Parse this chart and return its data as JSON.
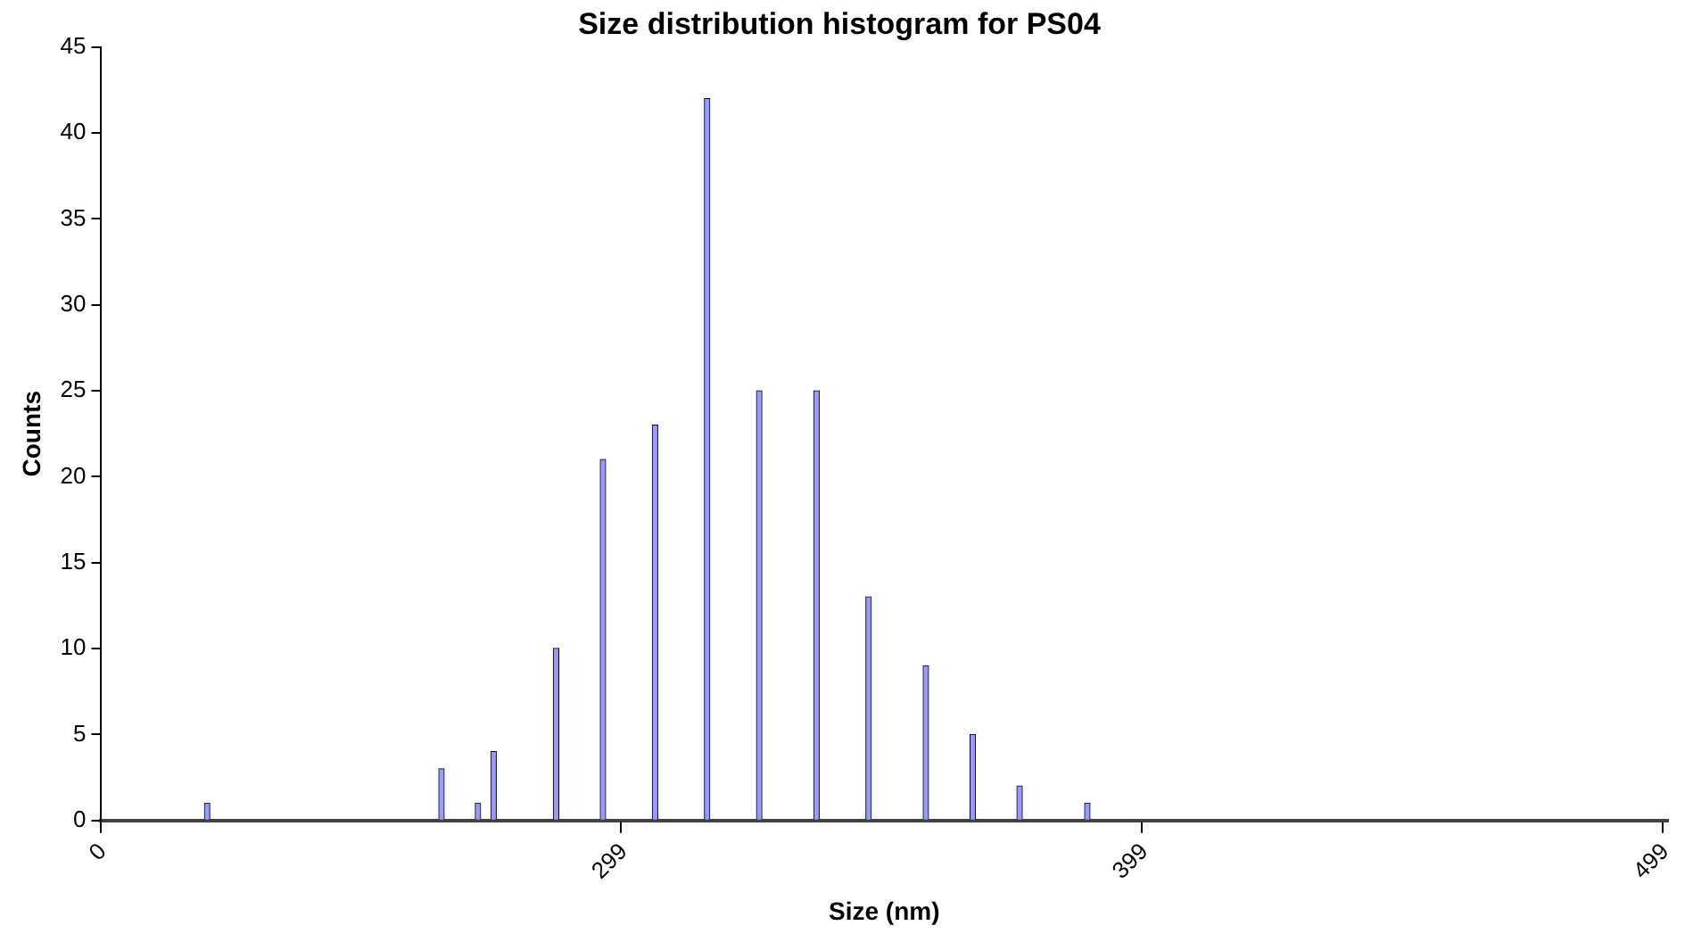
{
  "chart_data": {
    "type": "bar",
    "title": "Size distribution histogram for PS04",
    "xlabel": "Size (nm)",
    "ylabel": "Counts",
    "categories": [
      "0",
      null,
      null,
      null,
      null,
      null,
      null,
      null,
      null,
      null,
      null,
      null,
      null,
      null,
      null,
      null,
      null,
      null,
      null,
      null,
      null,
      null,
      null,
      null,
      null,
      null,
      null,
      null,
      null,
      null,
      null,
      null,
      null,
      null,
      null,
      null,
      null,
      null,
      null,
      null,
      null,
      null,
      null,
      null,
      null,
      null,
      null,
      null,
      null,
      null,
      null,
      null,
      null,
      null,
      null,
      null,
      null,
      null,
      null,
      null,
      null,
      null,
      null,
      null,
      null,
      null,
      null,
      null,
      null,
      null,
      null,
      null,
      null,
      null,
      null,
      null,
      null,
      null,
      null,
      null,
      null,
      null,
      null,
      null,
      null,
      null,
      null,
      null,
      null,
      null,
      null,
      null,
      null,
      null,
      null,
      null,
      null,
      null,
      null,
      null,
      "299",
      null,
      null,
      null,
      null,
      null,
      null,
      null,
      null,
      null,
      null,
      null,
      null,
      null,
      null,
      null,
      null,
      null,
      null,
      null,
      null,
      null,
      null,
      null,
      null,
      null,
      null,
      null,
      null,
      null,
      null,
      null,
      null,
      null,
      null,
      null,
      null,
      null,
      null,
      null,
      null,
      null,
      null,
      null,
      null,
      null,
      null,
      null,
      null,
      null,
      null,
      null,
      null,
      null,
      null,
      null,
      null,
      null,
      null,
      null,
      null,
      null,
      null,
      null,
      null,
      null,
      null,
      null,
      null,
      null,
      null,
      null,
      null,
      null,
      null,
      null,
      null,
      null,
      null,
      null,
      null,
      null,
      null,
      null,
      null,
      null,
      null,
      null,
      null,
      null,
      null,
      null,
      null,
      null,
      null,
      null,
      null,
      null,
      null,
      null,
      "399",
      null,
      null,
      null,
      null,
      null,
      null,
      null,
      null,
      null,
      null,
      null,
      null,
      null,
      null,
      null,
      null,
      null,
      null,
      null,
      null,
      null,
      null,
      null,
      null,
      null,
      null,
      null,
      null,
      null,
      null,
      null,
      null,
      null,
      null,
      null,
      null,
      null,
      null,
      null,
      null,
      null,
      null,
      null,
      null,
      null,
      null,
      null,
      null,
      null,
      null,
      null,
      null,
      null,
      null,
      null,
      null,
      null,
      null,
      null,
      null,
      null,
      null,
      null,
      null,
      null,
      null,
      null,
      null,
      null,
      null,
      null,
      null,
      null,
      null,
      null,
      null,
      null,
      null,
      null,
      null,
      null,
      null,
      null,
      null,
      null,
      null,
      null,
      null,
      null,
      null,
      null,
      null,
      null,
      null,
      null,
      null,
      null,
      null,
      null,
      "499"
    ],
    "values": [
      null,
      null,
      null,
      null,
      null,
      null,
      null,
      null,
      null,
      null,
      null,
      null,
      null,
      null,
      null,
      null,
      null,
      null,
      null,
      null,
      1,
      null,
      null,
      null,
      null,
      null,
      null,
      null,
      null,
      null,
      null,
      null,
      null,
      null,
      null,
      null,
      null,
      null,
      null,
      null,
      null,
      null,
      null,
      null,
      null,
      null,
      null,
      null,
      null,
      null,
      null,
      null,
      null,
      null,
      null,
      null,
      null,
      null,
      null,
      null,
      null,
      null,
      null,
      null,
      null,
      3,
      null,
      null,
      null,
      null,
      null,
      null,
      1,
      null,
      null,
      4,
      null,
      null,
      null,
      null,
      null,
      null,
      null,
      null,
      null,
      null,
      null,
      10,
      null,
      null,
      null,
      null,
      null,
      null,
      null,
      null,
      21,
      null,
      null,
      null,
      null,
      null,
      null,
      null,
      null,
      null,
      23,
      null,
      null,
      null,
      null,
      null,
      null,
      null,
      null,
      null,
      42,
      null,
      null,
      null,
      null,
      null,
      null,
      null,
      null,
      null,
      25,
      null,
      null,
      null,
      null,
      null,
      null,
      null,
      null,
      null,
      null,
      25,
      null,
      null,
      null,
      null,
      null,
      null,
      null,
      null,
      null,
      13,
      null,
      null,
      null,
      null,
      null,
      null,
      null,
      null,
      null,
      null,
      9,
      null,
      null,
      null,
      null,
      null,
      null,
      null,
      null,
      5,
      null,
      null,
      null,
      null,
      null,
      null,
      null,
      null,
      2,
      null,
      null,
      null,
      null,
      null,
      null,
      null,
      null,
      null,
      null,
      null,
      null,
      1,
      null,
      null,
      null,
      null,
      null,
      null,
      null,
      null,
      null,
      null,
      null,
      null,
      null,
      null,
      null,
      null,
      null,
      null,
      null,
      null,
      null,
      null,
      null,
      null,
      null,
      null,
      null,
      null,
      null,
      null,
      null,
      null,
      null,
      null,
      null,
      null,
      null,
      null,
      null,
      null,
      null,
      null,
      null,
      null,
      null,
      null,
      null,
      null,
      null,
      null,
      null,
      null,
      null,
      null,
      null,
      null,
      null,
      null,
      null,
      null,
      null,
      null,
      null,
      null,
      null,
      null,
      null,
      null,
      null,
      null,
      null,
      null,
      null,
      null,
      null,
      null,
      null,
      null,
      null,
      null,
      null,
      null,
      null,
      null,
      null,
      null,
      null,
      null,
      null,
      null,
      null,
      null,
      null,
      null,
      null,
      null,
      null,
      null,
      null,
      null,
      null,
      null,
      null,
      null,
      null,
      null,
      null,
      null,
      null,
      null,
      null
    ],
    "color": "#9999ff",
    "ylim": [
      0,
      45
    ],
    "yticks": [
      0,
      5,
      10,
      15,
      20,
      25,
      30,
      35,
      40,
      45
    ],
    "grid": false,
    "legend": false
  }
}
